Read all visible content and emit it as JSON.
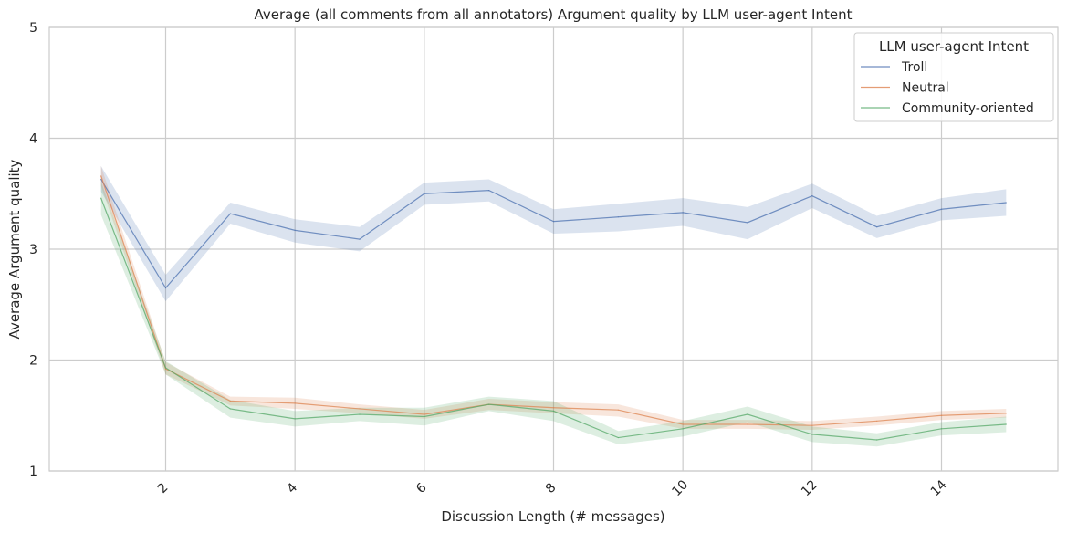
{
  "chart_data": {
    "type": "line",
    "title": "Average (all comments from all annotators) Argument quality by LLM user-agent Intent",
    "xlabel": "Discussion Length (# messages)",
    "ylabel": "Average Argument quality",
    "xlim": [
      0.2,
      15.8
    ],
    "ylim": [
      1,
      5
    ],
    "x_ticks": [
      2,
      4,
      6,
      8,
      10,
      12,
      14
    ],
    "x_tick_labels": [
      "2",
      "4",
      "6",
      "8",
      "10",
      "12",
      "14"
    ],
    "y_ticks": [
      1,
      2,
      3,
      4,
      5
    ],
    "y_tick_labels": [
      "1",
      "2",
      "3",
      "4",
      "5"
    ],
    "grid": true,
    "legend": {
      "title": "LLM user-agent Intent",
      "placement": "top-right"
    },
    "x": [
      1,
      2,
      3,
      4,
      5,
      6,
      7,
      8,
      9,
      10,
      11,
      12,
      13,
      14,
      15
    ],
    "series": [
      {
        "name": "Troll",
        "color": "#4c72b0",
        "values": [
          3.63,
          2.65,
          3.32,
          3.17,
          3.09,
          3.5,
          3.53,
          3.25,
          3.29,
          3.33,
          3.24,
          3.48,
          3.2,
          3.36,
          3.42
        ],
        "lower": [
          3.52,
          2.53,
          3.23,
          3.06,
          2.98,
          3.4,
          3.43,
          3.14,
          3.16,
          3.21,
          3.09,
          3.37,
          3.1,
          3.26,
          3.3
        ],
        "upper": [
          3.75,
          2.77,
          3.42,
          3.27,
          3.2,
          3.6,
          3.63,
          3.36,
          3.41,
          3.46,
          3.38,
          3.59,
          3.3,
          3.46,
          3.54
        ]
      },
      {
        "name": "Neutral",
        "color": "#dd8452",
        "values": [
          3.66,
          1.92,
          1.63,
          1.61,
          1.56,
          1.51,
          1.6,
          1.57,
          1.55,
          1.42,
          1.42,
          1.41,
          1.45,
          1.5,
          1.52
        ],
        "lower": [
          3.57,
          1.87,
          1.59,
          1.56,
          1.52,
          1.47,
          1.55,
          1.52,
          1.49,
          1.38,
          1.38,
          1.37,
          1.41,
          1.46,
          1.48
        ],
        "upper": [
          3.75,
          1.98,
          1.67,
          1.66,
          1.6,
          1.55,
          1.65,
          1.62,
          1.6,
          1.46,
          1.46,
          1.45,
          1.49,
          1.54,
          1.56
        ]
      },
      {
        "name": "Community-oriented",
        "color": "#55a868",
        "values": [
          3.46,
          1.93,
          1.56,
          1.47,
          1.51,
          1.49,
          1.6,
          1.54,
          1.3,
          1.38,
          1.51,
          1.33,
          1.28,
          1.38,
          1.42
        ],
        "lower": [
          3.31,
          1.87,
          1.48,
          1.4,
          1.45,
          1.41,
          1.54,
          1.45,
          1.24,
          1.31,
          1.44,
          1.26,
          1.22,
          1.32,
          1.35
        ],
        "upper": [
          3.61,
          1.99,
          1.64,
          1.54,
          1.57,
          1.57,
          1.67,
          1.63,
          1.36,
          1.45,
          1.58,
          1.4,
          1.34,
          1.44,
          1.49
        ]
      }
    ]
  }
}
